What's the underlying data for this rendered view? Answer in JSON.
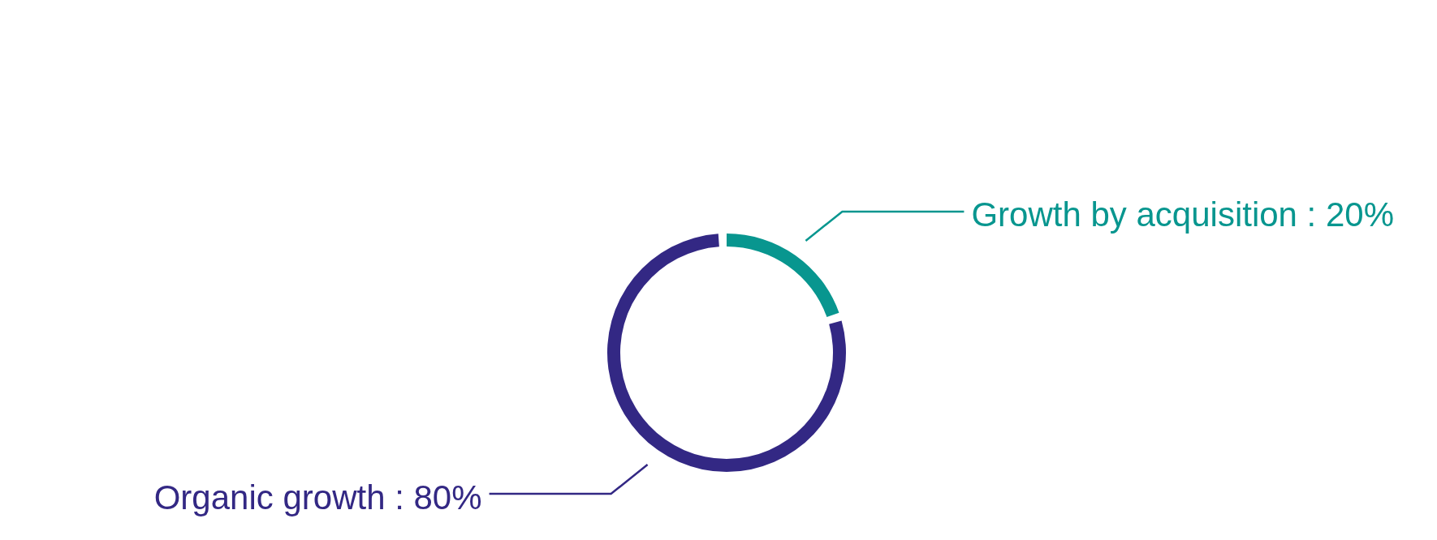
{
  "chart_data": {
    "type": "donut",
    "categories": [
      "Growth by acquisition",
      "Organic growth"
    ],
    "values": [
      20,
      80
    ],
    "colors": [
      "#08968f",
      "#332884"
    ],
    "value_labels": [
      "20%",
      "80%"
    ]
  }
}
